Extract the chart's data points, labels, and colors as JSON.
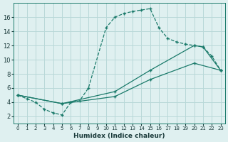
{
  "xlabel": "Humidex (Indice chaleur)",
  "background_color": "#dff0f0",
  "grid_color": "#b8d8d8",
  "line_color": "#1a7a6a",
  "xlim": [
    -0.5,
    23.5
  ],
  "ylim": [
    1,
    18
  ],
  "yticks": [
    2,
    4,
    6,
    8,
    10,
    12,
    14,
    16
  ],
  "xticks": [
    0,
    1,
    2,
    3,
    4,
    5,
    6,
    7,
    8,
    9,
    10,
    11,
    12,
    13,
    14,
    15,
    16,
    17,
    18,
    19,
    20,
    21,
    22,
    23
  ],
  "series1_x": [
    0,
    1,
    2,
    3,
    4,
    5,
    6,
    7,
    8,
    10,
    11,
    12,
    13,
    14,
    15,
    16,
    17,
    18,
    19,
    20,
    21,
    22,
    23
  ],
  "series1_y": [
    5,
    4.5,
    4,
    3,
    2.5,
    2.2,
    4.0,
    4.2,
    6.0,
    14.5,
    16.0,
    16.5,
    16.8,
    17.0,
    17.2,
    14.5,
    13.0,
    12.5,
    12.2,
    12.0,
    11.8,
    10.5,
    8.5
  ],
  "series2_x": [
    0,
    5,
    11,
    15,
    20,
    21,
    23
  ],
  "series2_y": [
    5,
    3.8,
    5.5,
    8.5,
    12.0,
    11.8,
    8.5
  ],
  "series3_x": [
    0,
    5,
    11,
    15,
    20,
    23
  ],
  "series3_y": [
    5,
    3.8,
    4.8,
    7.2,
    9.5,
    8.5
  ]
}
